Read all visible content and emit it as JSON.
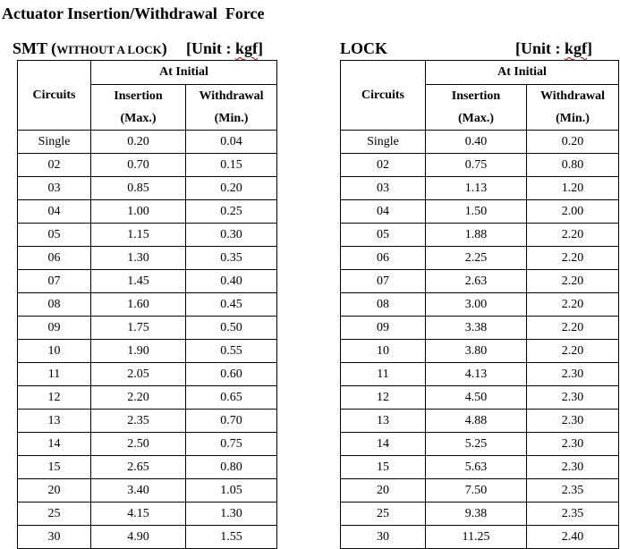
{
  "title": "Actuator Insertion/Withdrawal  Force",
  "smt": {
    "heading_main": "SMT (",
    "heading_small": "WITHOUT A LOCK",
    "heading_close": ")",
    "unit_prefix": "[Unit : ",
    "unit_value": "kgf",
    "unit_suffix": "]",
    "header": {
      "group": "At Initial",
      "circuits": "Circuits",
      "insertion": "Insertion",
      "insertion_sub": "(Max.)",
      "withdrawal": "Withdrawal",
      "withdrawal_sub": "(Min.)"
    },
    "rows": [
      {
        "circuits": "Single",
        "insertion": "0.20",
        "withdrawal": "0.04"
      },
      {
        "circuits": "02",
        "insertion": "0.70",
        "withdrawal": "0.15"
      },
      {
        "circuits": "03",
        "insertion": "0.85",
        "withdrawal": "0.20"
      },
      {
        "circuits": "04",
        "insertion": "1.00",
        "withdrawal": "0.25"
      },
      {
        "circuits": "05",
        "insertion": "1.15",
        "withdrawal": "0.30"
      },
      {
        "circuits": "06",
        "insertion": "1.30",
        "withdrawal": "0.35"
      },
      {
        "circuits": "07",
        "insertion": "1.45",
        "withdrawal": "0.40"
      },
      {
        "circuits": "08",
        "insertion": "1.60",
        "withdrawal": "0.45"
      },
      {
        "circuits": "09",
        "insertion": "1.75",
        "withdrawal": "0.50"
      },
      {
        "circuits": "10",
        "insertion": "1.90",
        "withdrawal": "0.55"
      },
      {
        "circuits": "11",
        "insertion": "2.05",
        "withdrawal": "0.60"
      },
      {
        "circuits": "12",
        "insertion": "2.20",
        "withdrawal": "0.65"
      },
      {
        "circuits": "13",
        "insertion": "2.35",
        "withdrawal": "0.70"
      },
      {
        "circuits": "14",
        "insertion": "2.50",
        "withdrawal": "0.75"
      },
      {
        "circuits": "15",
        "insertion": "2.65",
        "withdrawal": "0.80"
      },
      {
        "circuits": "20",
        "insertion": "3.40",
        "withdrawal": "1.05"
      },
      {
        "circuits": "25",
        "insertion": "4.15",
        "withdrawal": "1.30"
      },
      {
        "circuits": "30",
        "insertion": "4.90",
        "withdrawal": "1.55"
      }
    ]
  },
  "lock": {
    "heading": "LOCK",
    "unit_prefix": "[Unit : ",
    "unit_value": "kgf",
    "unit_suffix": "]",
    "header": {
      "group": "At Initial",
      "circuits": "Circuits",
      "insertion": "Insertion",
      "insertion_sub": "(Max.)",
      "withdrawal": "Withdrawal",
      "withdrawal_sub": "(Min.)"
    },
    "rows": [
      {
        "circuits": "Single",
        "insertion": "0.40",
        "withdrawal": "0.20"
      },
      {
        "circuits": "02",
        "insertion": "0.75",
        "withdrawal": "0.80"
      },
      {
        "circuits": "03",
        "insertion": "1.13",
        "withdrawal": "1.20"
      },
      {
        "circuits": "04",
        "insertion": "1.50",
        "withdrawal": "2.00"
      },
      {
        "circuits": "05",
        "insertion": "1.88",
        "withdrawal": "2.20"
      },
      {
        "circuits": "06",
        "insertion": "2.25",
        "withdrawal": "2.20"
      },
      {
        "circuits": "07",
        "insertion": "2.63",
        "withdrawal": "2.20"
      },
      {
        "circuits": "08",
        "insertion": "3.00",
        "withdrawal": "2.20"
      },
      {
        "circuits": "09",
        "insertion": "3.38",
        "withdrawal": "2.20"
      },
      {
        "circuits": "10",
        "insertion": "3.80",
        "withdrawal": "2.20"
      },
      {
        "circuits": "11",
        "insertion": "4.13",
        "withdrawal": "2.30"
      },
      {
        "circuits": "12",
        "insertion": "4.50",
        "withdrawal": "2.30"
      },
      {
        "circuits": "13",
        "insertion": "4.88",
        "withdrawal": "2.30"
      },
      {
        "circuits": "14",
        "insertion": "5.25",
        "withdrawal": "2.30"
      },
      {
        "circuits": "15",
        "insertion": "5.63",
        "withdrawal": "2.30"
      },
      {
        "circuits": "20",
        "insertion": "7.50",
        "withdrawal": "2.35"
      },
      {
        "circuits": "25",
        "insertion": "9.38",
        "withdrawal": "2.35"
      },
      {
        "circuits": "30",
        "insertion": "11.25",
        "withdrawal": "2.40"
      }
    ]
  }
}
